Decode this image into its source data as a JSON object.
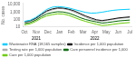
{
  "chart_data": {
    "type": "line",
    "ylabel": "No. cases",
    "x": [
      0,
      1,
      2,
      3,
      4,
      5,
      6,
      7,
      8,
      9,
      10,
      11,
      12,
      13,
      14,
      15,
      16,
      17,
      18,
      19
    ],
    "series": [
      {
        "name": "Wastewater RNA\n(18,565 samples)",
        "color": "#00ccff",
        "values": [
          55,
          75,
          180,
          600,
          2200,
          4500,
          5500,
          4800,
          3500,
          2200,
          1400,
          900,
          700,
          750,
          950,
          1300,
          1700,
          2000,
          2200,
          2400
        ]
      },
      {
        "name": "Incidence per 1,000\npopulation",
        "color": "#111111",
        "values": [
          50,
          65,
          140,
          450,
          1400,
          2600,
          3600,
          3400,
          2400,
          1400,
          650,
          300,
          160,
          90,
          70,
          90,
          120,
          160,
          190,
          220
        ]
      },
      {
        "name": "Testing rate per\n1,000 population",
        "color": "#aaaaaa",
        "values": [
          38,
          50,
          110,
          370,
          1100,
          2000,
          3000,
          2800,
          1900,
          1000,
          460,
          220,
          110,
          70,
          58,
          78,
          100,
          135,
          160,
          185
        ]
      },
      {
        "name": "Care personnel\nincidence per 1,000",
        "color": "#006400",
        "values": [
          28,
          38,
          80,
          230,
          560,
          850,
          1100,
          1000,
          700,
          370,
          180,
          100,
          65,
          45,
          32,
          38,
          48,
          62,
          72,
          82
        ]
      },
      {
        "name": "Care per 1,000\npopulation",
        "color": "#66cc00",
        "values": [
          18,
          25,
          52,
          140,
          300,
          440,
          580,
          540,
          360,
          185,
          95,
          55,
          35,
          22,
          15,
          17,
          22,
          28,
          33,
          38
        ]
      }
    ],
    "xlim": [
      -0.3,
      19.3
    ],
    "xticks": [
      {
        "value": 0,
        "label": "Oct"
      },
      {
        "value": 2.111111111111111,
        "label": "Nov"
      },
      {
        "value": 4.222222222222222,
        "label": "Dec"
      },
      {
        "value": 6.333333333333333,
        "label": "Jan"
      },
      {
        "value": 8.444444444444445,
        "label": "Feb"
      },
      {
        "value": 10.555555555555555,
        "label": "Mar"
      },
      {
        "value": 12.666666666666666,
        "label": "Apr"
      },
      {
        "value": 14.777777777777779,
        "label": "May"
      },
      {
        "value": 16.88888888888889,
        "label": "Jun"
      },
      {
        "value": 19,
        "label": "Jul"
      }
    ],
    "ylim": [
      10,
      15000
    ],
    "yticks": [
      10,
      100,
      {
        "value": 1000,
        "label": "1,000"
      },
      {
        "value": 10000,
        "label": "10,000"
      }
    ],
    "log": "y",
    "annotations": [
      {
        "text": "2021",
        "x": 2.111111111111111
      },
      {
        "text": "2022",
        "x": 12.666666666666666
      }
    ],
    "grid": false,
    "legend": "lower left"
  }
}
